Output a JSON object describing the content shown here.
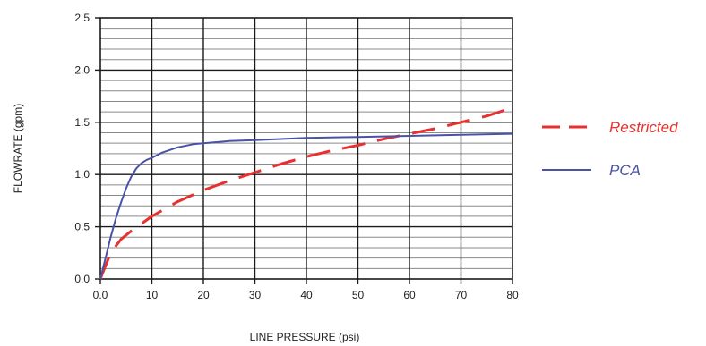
{
  "chart_data": {
    "type": "line",
    "xlabel": "LINE PRESSURE (psi)",
    "ylabel": "FLOWRATE (gpm)",
    "xlim": [
      0,
      80
    ],
    "ylim": [
      0,
      2.5
    ],
    "x_ticks": [
      "0.0",
      "10",
      "20",
      "30",
      "40",
      "50",
      "60",
      "70",
      "80"
    ],
    "y_ticks": [
      "0.0",
      "0.5",
      "1.0",
      "1.5",
      "2.0",
      "2.5"
    ],
    "grid": true,
    "legend_position": "right",
    "series": [
      {
        "name": "Restricted",
        "color": "#e8312f",
        "style": "dashed",
        "x": [
          0,
          2,
          4,
          6,
          8,
          10,
          15,
          20,
          25,
          30,
          35,
          40,
          45,
          50,
          55,
          60,
          65,
          70,
          75,
          80
        ],
        "y": [
          0,
          0.25,
          0.38,
          0.46,
          0.53,
          0.6,
          0.74,
          0.85,
          0.94,
          1.02,
          1.1,
          1.17,
          1.23,
          1.28,
          1.34,
          1.39,
          1.44,
          1.5,
          1.56,
          1.64
        ]
      },
      {
        "name": "PCA",
        "color": "#4a52a8",
        "style": "solid",
        "x": [
          0,
          1,
          2,
          3,
          4,
          5,
          6,
          7,
          8,
          9,
          10,
          12,
          15,
          18,
          20,
          25,
          30,
          40,
          50,
          60,
          70,
          80
        ],
        "y": [
          0,
          0.2,
          0.4,
          0.58,
          0.73,
          0.87,
          0.98,
          1.06,
          1.11,
          1.14,
          1.16,
          1.21,
          1.26,
          1.29,
          1.3,
          1.32,
          1.33,
          1.35,
          1.36,
          1.37,
          1.38,
          1.39
        ]
      }
    ]
  }
}
